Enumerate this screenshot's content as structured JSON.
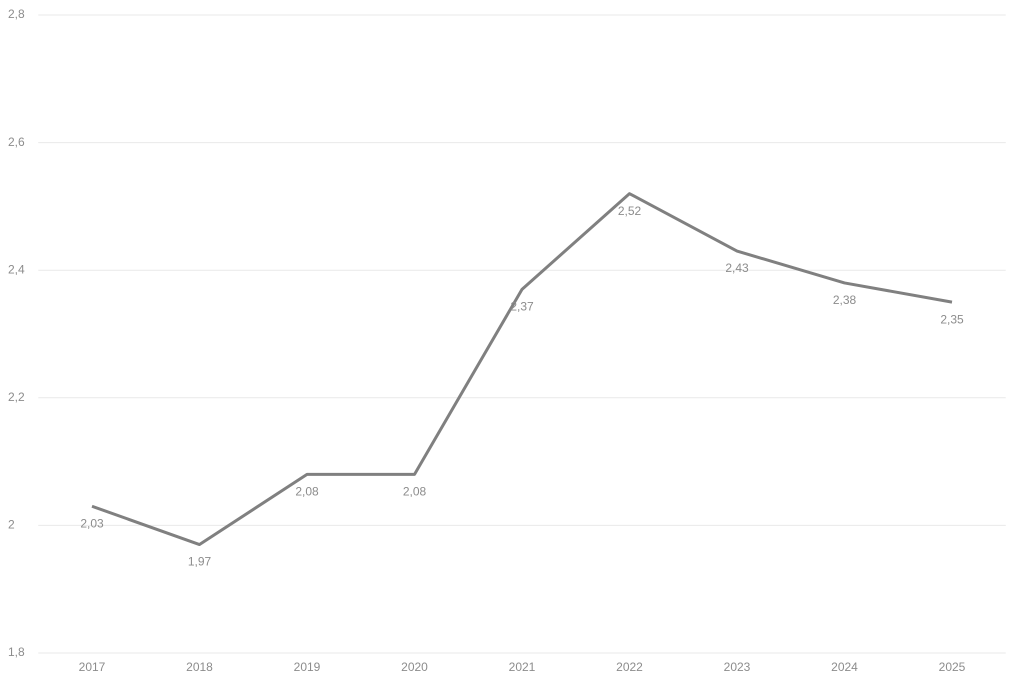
{
  "chart_data": {
    "type": "line",
    "categories": [
      "2017",
      "2018",
      "2019",
      "2020",
      "2021",
      "2022",
      "2023",
      "2024",
      "2025"
    ],
    "values": [
      2.03,
      1.97,
      2.08,
      2.08,
      2.37,
      2.52,
      2.43,
      2.38,
      2.35
    ],
    "value_labels": [
      "2,03",
      "1,97",
      "2,08",
      "2,08",
      "2,37",
      "2,52",
      "2,43",
      "2,38",
      "2,35"
    ],
    "color": "#808080",
    "ylim": [
      1.8,
      2.8
    ],
    "yticks": [
      {
        "value": 1.8,
        "label": "1,8"
      },
      2,
      {
        "value": 2.2,
        "label": "2,2"
      },
      {
        "value": 2.4,
        "label": "2,4"
      },
      {
        "value": 2.6,
        "label": "2,6"
      },
      {
        "value": 2.8,
        "label": "2,8"
      }
    ],
    "grid": true
  }
}
